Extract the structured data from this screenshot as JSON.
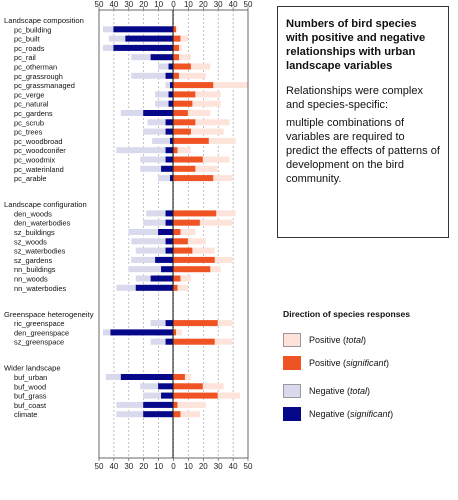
{
  "chart_data": {
    "type": "bar",
    "orientation": "horizontal-diverging",
    "xlim": [
      -50,
      50
    ],
    "x_ticks": [
      50,
      40,
      30,
      20,
      10,
      0,
      10,
      20,
      30,
      40,
      50
    ],
    "colors": {
      "positive_total": "#fde3d9",
      "positive_significant": "#ef5323",
      "negative_total": "#d8d9ec",
      "negative_significant": "#06088a"
    },
    "groups": [
      {
        "title": "Landscape composition",
        "rows": [
          {
            "label": "pc_building",
            "neg_total": 47,
            "neg_sig": 40,
            "pos_total": 3,
            "pos_sig": 2
          },
          {
            "label": "pc_built",
            "neg_total": 43,
            "neg_sig": 32,
            "pos_total": 10,
            "pos_sig": 5
          },
          {
            "label": "pc_roads",
            "neg_total": 47,
            "neg_sig": 40,
            "pos_total": 6,
            "pos_sig": 4
          },
          {
            "label": "pc_rail",
            "neg_total": 28,
            "neg_sig": 15,
            "pos_total": 12,
            "pos_sig": 4
          },
          {
            "label": "pc_otherman",
            "neg_total": 10,
            "neg_sig": 3,
            "pos_total": 25,
            "pos_sig": 12
          },
          {
            "label": "pc_grassrough",
            "neg_total": 28,
            "neg_sig": 5,
            "pos_total": 22,
            "pos_sig": 4
          },
          {
            "label": "pc_grassmanaged",
            "neg_total": 5,
            "neg_sig": 2,
            "pos_total": 50,
            "pos_sig": 27
          },
          {
            "label": "pc_verge",
            "neg_total": 12,
            "neg_sig": 3,
            "pos_total": 32,
            "pos_sig": 15
          },
          {
            "label": "pc_natural",
            "neg_total": 12,
            "neg_sig": 3,
            "pos_total": 32,
            "pos_sig": 13
          },
          {
            "label": "pc_gardens",
            "neg_total": 35,
            "neg_sig": 20,
            "pos_total": 25,
            "pos_sig": 10
          },
          {
            "label": "pc_scrub",
            "neg_total": 17,
            "neg_sig": 5,
            "pos_total": 38,
            "pos_sig": 15
          },
          {
            "label": "pc_trees",
            "neg_total": 20,
            "neg_sig": 5,
            "pos_total": 34,
            "pos_sig": 12
          },
          {
            "label": "pc_woodbroad",
            "neg_total": 14,
            "neg_sig": 2,
            "pos_total": 42,
            "pos_sig": 24
          },
          {
            "label": "pc_woodconifer",
            "neg_total": 38,
            "neg_sig": 5,
            "pos_total": 12,
            "pos_sig": 3
          },
          {
            "label": "pc_woodmix",
            "neg_total": 22,
            "neg_sig": 5,
            "pos_total": 38,
            "pos_sig": 20
          },
          {
            "label": "pc_waterinland",
            "neg_total": 22,
            "neg_sig": 8,
            "pos_total": 30,
            "pos_sig": 15
          },
          {
            "label": "pc_arable",
            "neg_total": 10,
            "neg_sig": 2,
            "pos_total": 40,
            "pos_sig": 27
          }
        ]
      },
      {
        "title": "Landscape configuration",
        "rows": [
          {
            "label": "den_woods",
            "neg_total": 18,
            "neg_sig": 5,
            "pos_total": 42,
            "pos_sig": 29
          },
          {
            "label": "den_waterbodies",
            "neg_total": 20,
            "neg_sig": 5,
            "pos_total": 40,
            "pos_sig": 18
          },
          {
            "label": "sz_buildings",
            "neg_total": 30,
            "neg_sig": 10,
            "pos_total": 15,
            "pos_sig": 5
          },
          {
            "label": "sz_woods",
            "neg_total": 28,
            "neg_sig": 5,
            "pos_total": 22,
            "pos_sig": 10
          },
          {
            "label": "sz_waterbodies",
            "neg_total": 25,
            "neg_sig": 5,
            "pos_total": 28,
            "pos_sig": 13
          },
          {
            "label": "sz_gardens",
            "neg_total": 28,
            "neg_sig": 12,
            "pos_total": 40,
            "pos_sig": 28
          },
          {
            "label": "nn_buildings",
            "neg_total": 30,
            "neg_sig": 8,
            "pos_total": 32,
            "pos_sig": 25
          },
          {
            "label": "nn_woods",
            "neg_total": 25,
            "neg_sig": 15,
            "pos_total": 12,
            "pos_sig": 5
          },
          {
            "label": "nn_waterbodies",
            "neg_total": 38,
            "neg_sig": 25,
            "pos_total": 10,
            "pos_sig": 3
          }
        ]
      },
      {
        "title": "Greenspace heterogeneity",
        "rows": [
          {
            "label": "ric_greenspace",
            "neg_total": 15,
            "neg_sig": 5,
            "pos_total": 40,
            "pos_sig": 30
          },
          {
            "label": "den_greenspace",
            "neg_total": 47,
            "neg_sig": 42,
            "pos_total": 6,
            "pos_sig": 2
          },
          {
            "label": "sz_greenspace",
            "neg_total": 15,
            "neg_sig": 5,
            "pos_total": 40,
            "pos_sig": 28
          }
        ]
      },
      {
        "title": "Wider landscape",
        "rows": [
          {
            "label": "buf_urban",
            "neg_total": 45,
            "neg_sig": 35,
            "pos_total": 12,
            "pos_sig": 8
          },
          {
            "label": "buf_wood",
            "neg_total": 22,
            "neg_sig": 10,
            "pos_total": 34,
            "pos_sig": 20
          },
          {
            "label": "buf_grass",
            "neg_total": 20,
            "neg_sig": 8,
            "pos_total": 45,
            "pos_sig": 30
          },
          {
            "label": "buf_coast",
            "neg_total": 38,
            "neg_sig": 20,
            "pos_total": 22,
            "pos_sig": 3
          },
          {
            "label": "climate",
            "neg_total": 38,
            "neg_sig": 20,
            "pos_total": 18,
            "pos_sig": 5
          }
        ]
      }
    ]
  },
  "info_box": {
    "title": "Numbers of bird species with positive and negative relationships with urban landscape variables",
    "paragraph1": "Relationships were complex and species-specific:",
    "paragraph2": "multiple combinations of variables are required to predict the effects of patterns of development on the bird community."
  },
  "legend": {
    "title": "Direction of species responses",
    "items": [
      {
        "key": "positive_total",
        "text": "Positive",
        "qualifier": "total"
      },
      {
        "key": "positive_significant",
        "text": "Positive",
        "qualifier": "significant"
      },
      {
        "key": "negative_total",
        "text": "Negative",
        "qualifier": "total"
      },
      {
        "key": "negative_significant",
        "text": "Negative",
        "qualifier": "significant"
      }
    ]
  }
}
